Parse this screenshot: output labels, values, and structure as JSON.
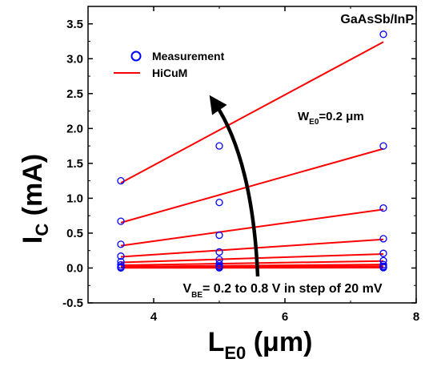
{
  "chart_data": {
    "type": "scatter",
    "title": "",
    "xlabel": "L",
    "xlabel_sub": "E0",
    "xlabel_unit": " (μm)",
    "ylabel": "I",
    "ylabel_sub": "C",
    "ylabel_unit": " (mA)",
    "xlim": [
      3,
      8
    ],
    "ylim": [
      -0.5,
      3.75
    ],
    "x_ticks": [
      4,
      6,
      8
    ],
    "y_ticks": [
      -0.5,
      0.0,
      0.5,
      1.0,
      1.5,
      2.0,
      2.5,
      3.0,
      3.5
    ],
    "x_tick_labels": [
      "4",
      "6",
      "8"
    ],
    "y_tick_labels": [
      "-0.5",
      "0.0",
      "0.5",
      "1.0",
      "1.5",
      "2.0",
      "2.5",
      "3.0",
      "3.5"
    ],
    "grid": false,
    "legend_position": "top-left",
    "x": [
      3.5,
      5.0,
      7.5
    ],
    "measurement_color": "#0000ff",
    "model_color": "#ff0000",
    "series": [
      {
        "name": "Measurement",
        "kind": "markers",
        "curves": [
          [
            1.25,
            1.75,
            3.35
          ],
          [
            0.67,
            0.94,
            1.75
          ],
          [
            0.34,
            0.47,
            0.86
          ],
          [
            0.17,
            0.23,
            0.42
          ],
          [
            0.09,
            0.12,
            0.21
          ],
          [
            0.045,
            0.06,
            0.105
          ],
          [
            0.02,
            0.03,
            0.05
          ],
          [
            0.01,
            0.015,
            0.025
          ],
          [
            0.005,
            0.007,
            0.012
          ],
          [
            0.002,
            0.003,
            0.005
          ]
        ]
      },
      {
        "name": "HiCuM",
        "kind": "lines",
        "curves": [
          [
            1.22,
            3.24
          ],
          [
            0.65,
            1.71
          ],
          [
            0.32,
            0.84
          ],
          [
            0.16,
            0.41
          ],
          [
            0.08,
            0.2
          ],
          [
            0.04,
            0.1
          ],
          [
            0.02,
            0.05
          ],
          [
            0.01,
            0.025
          ],
          [
            0.005,
            0.012
          ],
          [
            0.002,
            0.005
          ]
        ]
      }
    ],
    "annotations": {
      "material": "GaAsSb/InP",
      "width_main": "W",
      "width_sub": "E0",
      "width_value": "=0.2 μm",
      "vbe_main": "V",
      "vbe_sub": "BE",
      "vbe_text": "= 0.2 to 0.8 V in step of 20 mV"
    }
  }
}
